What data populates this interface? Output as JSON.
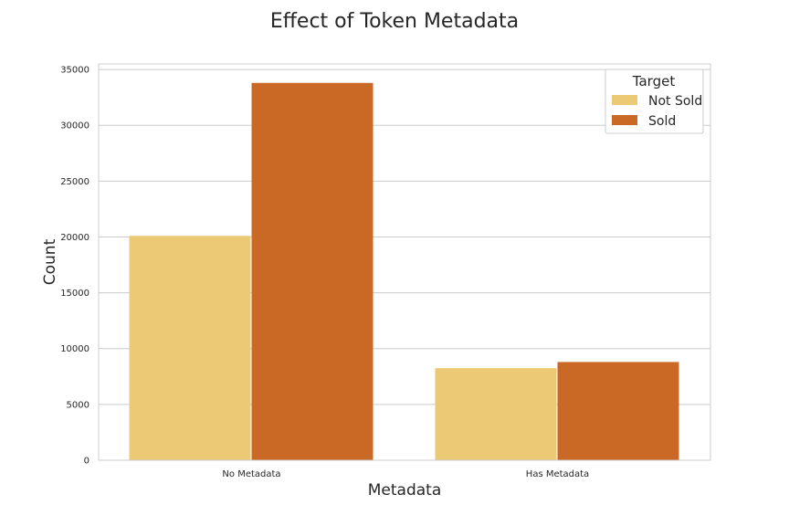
{
  "chart_data": {
    "type": "bar",
    "title": "Effect of Token Metadata",
    "xlabel": "Metadata",
    "ylabel": "Count",
    "categories": [
      "No Metadata",
      "Has Metadata"
    ],
    "series": [
      {
        "name": "Not Sold",
        "values": [
          20100,
          8250
        ],
        "color": "#ebc975"
      },
      {
        "name": "Sold",
        "values": [
          33800,
          8800
        ],
        "color": "#c96925"
      }
    ],
    "ylim": [
      0,
      35500
    ],
    "yticks": [
      0,
      5000,
      10000,
      15000,
      20000,
      25000,
      30000,
      35000
    ],
    "legend": {
      "title": "Target",
      "placement": "top-right"
    },
    "grid": "horizontal"
  }
}
